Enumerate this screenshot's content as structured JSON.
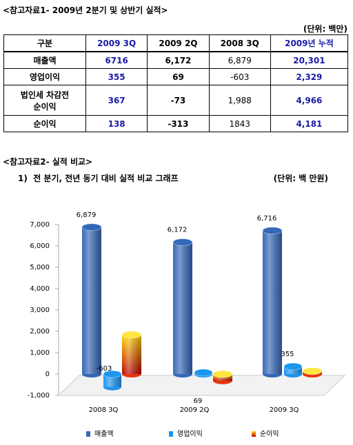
{
  "header": {
    "title": "<참고자료1- 2009년 2분기 및 상반기 실적>",
    "unit": "(단위: 백만)"
  },
  "table": {
    "columns": [
      "구분",
      "2009 3Q",
      "2009 2Q",
      "2008 3Q",
      "2009년 누적"
    ],
    "rows": [
      [
        "매출액",
        "6716",
        "6,172",
        "6,879",
        "20,301"
      ],
      [
        "영업이익",
        "355",
        "69",
        "-603",
        "2,329"
      ],
      [
        "법인세 차감전\n순이익",
        "367",
        "-73",
        "1,988",
        "4,966"
      ],
      [
        "순이익",
        "138",
        "-313",
        "1843",
        "4,181"
      ]
    ]
  },
  "section2": {
    "title": "<참고자료2- 실적 비교>",
    "subtitle": "1)  전 분기, 전년 동기 대비 실적 비교 그래프",
    "unit": "(단위: 백 만원)"
  },
  "chart_data": {
    "type": "bar3d",
    "categories": [
      "2008 3Q",
      "2009 2Q",
      "2009 3Q"
    ],
    "series": [
      {
        "name": "매출액",
        "color": "#3468b8",
        "values": [
          6879,
          6172,
          6716
        ],
        "value_labels": [
          "6,879",
          "6,172",
          "6,716"
        ]
      },
      {
        "name": "영업이익",
        "color": "#1c96ee",
        "values": [
          -603,
          69,
          355
        ],
        "value_labels": [
          "-603",
          "69",
          "355"
        ]
      },
      {
        "name": "순이익",
        "color": "#e8360c",
        "values": [
          1843,
          -313,
          138
        ]
      }
    ],
    "ylim": [
      -1000,
      7000
    ],
    "yticks": [
      {
        "value": -1000,
        "label": "-1,000"
      },
      0,
      {
        "value": 1000,
        "label": "1,000"
      },
      {
        "value": 2000,
        "label": "2,000"
      },
      {
        "value": 3000,
        "label": "3,000"
      },
      {
        "value": 4000,
        "label": "4,000"
      },
      {
        "value": 5000,
        "label": "5,000"
      },
      {
        "value": 6000,
        "label": "6,000"
      },
      {
        "value": 7000,
        "label": "7,000"
      }
    ],
    "legend": "bottom"
  }
}
